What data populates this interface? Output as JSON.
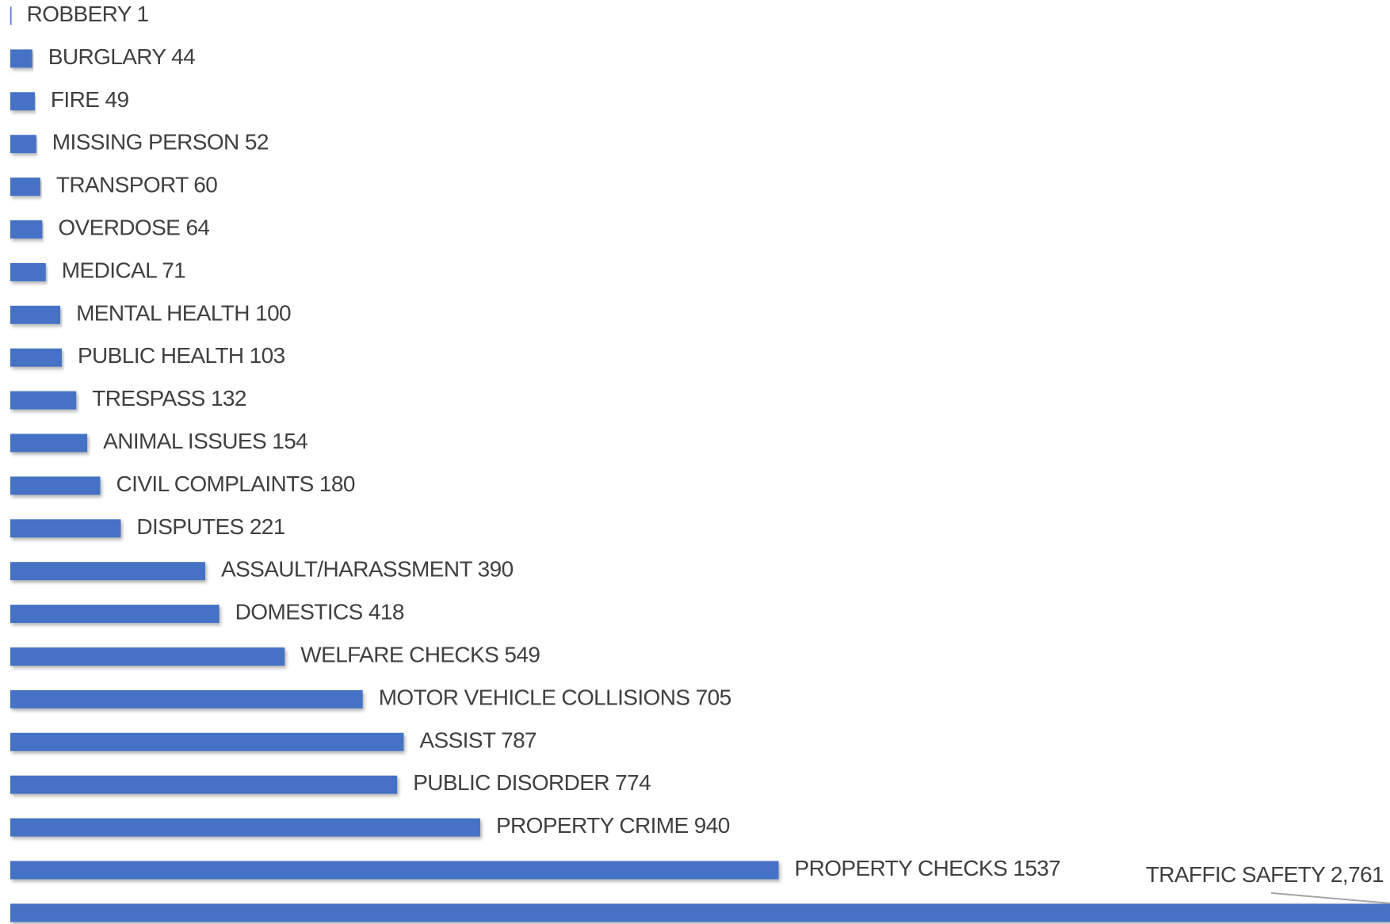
{
  "chart_data": {
    "type": "bar",
    "orientation": "horizontal",
    "color": "#4472c4",
    "categories": [
      "ROBBERY",
      "BURGLARY",
      "FIRE",
      "MISSING PERSON",
      "TRANSPORT",
      "OVERDOSE",
      "MEDICAL",
      "MENTAL HEALTH",
      "PUBLIC HEALTH",
      "TRESPASS",
      "ANIMAL ISSUES",
      "CIVIL COMPLAINTS",
      "DISPUTES",
      "ASSAULT/HARASSMENT",
      "DOMESTICS",
      "WELFARE CHECKS",
      "MOTOR VEHICLE COLLISIONS",
      "ASSIST",
      "PUBLIC DISORDER",
      "PROPERTY CRIME",
      "PROPERTY CHECKS",
      "TRAFFIC SAFETY"
    ],
    "values": [
      1,
      44,
      49,
      52,
      60,
      64,
      71,
      100,
      103,
      132,
      154,
      180,
      221,
      390,
      418,
      549,
      705,
      787,
      774,
      940,
      1537,
      2761
    ],
    "value_labels": [
      "1",
      "44",
      "49",
      "52",
      "60",
      "64",
      "71",
      "100",
      "103",
      "132",
      "154",
      "180",
      "221",
      "390",
      "418",
      "549",
      "705",
      "787",
      "774",
      "940",
      "1537",
      "2,761"
    ],
    "xlim": [
      0,
      2760
    ]
  }
}
